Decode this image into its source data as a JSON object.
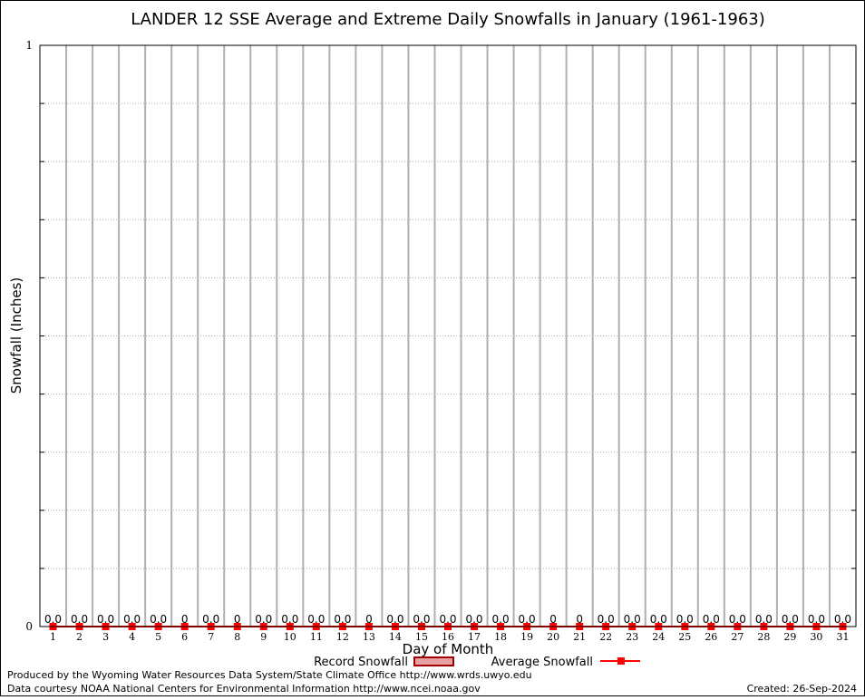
{
  "chart_data": {
    "type": "bar",
    "title": "LANDER 12 SSE Average and Extreme Daily Snowfalls in January (1961-1963)",
    "xlabel": "Day of Month",
    "ylabel": "Snowfall (Inches)",
    "ylim": [
      0,
      1
    ],
    "y_tick_labels": [
      "0",
      "1"
    ],
    "grid": true,
    "categories": [
      "1",
      "2",
      "3",
      "4",
      "5",
      "6",
      "7",
      "8",
      "9",
      "10",
      "11",
      "12",
      "13",
      "14",
      "15",
      "16",
      "17",
      "18",
      "19",
      "20",
      "21",
      "22",
      "23",
      "24",
      "25",
      "26",
      "27",
      "28",
      "29",
      "30",
      "31"
    ],
    "series": [
      {
        "name": "Record Snowfall",
        "color": "#a00000",
        "values": [
          0,
          0,
          0,
          0,
          0,
          0,
          0,
          0,
          0,
          0,
          0,
          0,
          0,
          0,
          0,
          0,
          0,
          0,
          0,
          0,
          0,
          0,
          0,
          0,
          0,
          0,
          0,
          0,
          0,
          0,
          0
        ],
        "labels": [
          "0.0",
          "0.0",
          "0.0",
          "0.0",
          "0.0",
          "0",
          "0.0",
          "0",
          "0.0",
          "0.0",
          "0.0",
          "0.0",
          "0",
          "0.0",
          "0.0",
          "0.0",
          "0.0",
          "0.0",
          "0.0",
          "0",
          "0",
          "0.0",
          "0.0",
          "0.0",
          "0.0",
          "0.0",
          "0.0",
          "0.0",
          "0.0",
          "0.0",
          "0.0"
        ]
      },
      {
        "name": "Average Snowfall",
        "color": "#ff0000",
        "values": [
          0,
          0,
          0,
          0,
          0,
          0,
          0,
          0,
          0,
          0,
          0,
          0,
          0,
          0,
          0,
          0,
          0,
          0,
          0,
          0,
          0,
          0,
          0,
          0,
          0,
          0,
          0,
          0,
          0,
          0,
          0
        ]
      }
    ],
    "legend": "bottom"
  },
  "footer": {
    "produced_by": "Produced by the Wyoming Water Resources Data System/State Climate Office http://www.wrds.uwyo.edu",
    "data_courtesy": "Data courtesy NOAA National Centers for Environmental Information http://www.ncei.noaa.gov",
    "created": "Created: 26-Sep-2024"
  }
}
